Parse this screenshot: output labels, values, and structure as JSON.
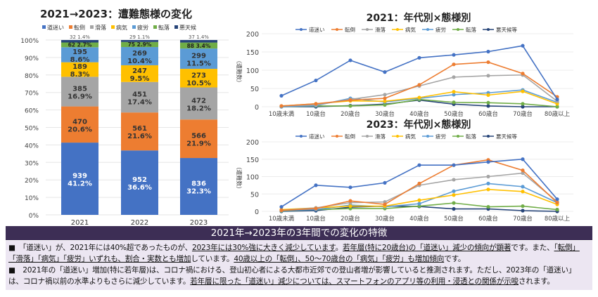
{
  "colors": {
    "道迷い": "#4472c4",
    "転倒": "#ed7d31",
    "滑落": "#a5a5a5",
    "病気": "#ffc000",
    "疲労": "#5b9bd5",
    "転落": "#70ad47",
    "悪天候": "#264478"
  },
  "chart_data": [
    {
      "type": "bar",
      "stacked": "percent",
      "title": "2021→2023：遭難態様の変化",
      "legend": [
        "道迷い",
        "転倒",
        "滑落",
        "病気",
        "疲労",
        "転落",
        "悪天候"
      ],
      "legend_position": "top",
      "categories": [
        "2021",
        "2022",
        "2023"
      ],
      "yticks": [
        "0%",
        "10%",
        "20%",
        "30%",
        "40%",
        "50%",
        "60%",
        "70%",
        "80%",
        "90%",
        "100%"
      ],
      "ylim": [
        0,
        100
      ],
      "grid": true,
      "series": [
        {
          "name": "道迷い",
          "values": [
            939,
            952,
            836
          ],
          "percents": [
            "41.2%",
            "36.6%",
            "32.3%"
          ]
        },
        {
          "name": "転倒",
          "values": [
            470,
            561,
            566
          ],
          "percents": [
            "20.6%",
            "21.6%",
            "21.9%"
          ]
        },
        {
          "name": "滑落",
          "values": [
            385,
            451,
            472
          ],
          "percents": [
            "16.9%",
            "17.4%",
            "18.2%"
          ]
        },
        {
          "name": "病気",
          "values": [
            189,
            247,
            273
          ],
          "percents": [
            "8.3%",
            "9.5%",
            "10.5%"
          ]
        },
        {
          "name": "疲労",
          "values": [
            195,
            269,
            299
          ],
          "percents": [
            "8.6%",
            "10.4%",
            "11.5%"
          ]
        },
        {
          "name": "転落",
          "values": [
            62,
            75,
            88
          ],
          "percents": [
            "2.7%",
            "2.9%",
            "3.4%"
          ]
        },
        {
          "name": "悪天候",
          "values": [
            32,
            29,
            37
          ],
          "percents": [
            "1.4%",
            "1.1%",
            "1.4%"
          ]
        }
      ]
    },
    {
      "type": "line",
      "title": "2021：年代別×態様別",
      "ylabel": "（遭難数）",
      "legend_position": "top",
      "ylim": [
        0,
        200
      ],
      "yticks": [
        0,
        50,
        100,
        150,
        200
      ],
      "grid": true,
      "categories": [
        "10歳未満",
        "10歳台",
        "20歳台",
        "30歳台",
        "40歳台",
        "50歳台",
        "60歳台",
        "70歳台",
        "80歳以上"
      ],
      "series": [
        {
          "name": "道迷い",
          "values": [
            30,
            72,
            127,
            95,
            134,
            142,
            151,
            167,
            20
          ]
        },
        {
          "name": "転倒",
          "values": [
            2,
            8,
            18,
            23,
            60,
            116,
            122,
            91,
            27
          ]
        },
        {
          "name": "滑落",
          "values": [
            2,
            5,
            20,
            33,
            57,
            81,
            85,
            87,
            15
          ]
        },
        {
          "name": "病気",
          "values": [
            2,
            8,
            16,
            15,
            25,
            41,
            32,
            42,
            8
          ]
        },
        {
          "name": "疲労",
          "values": [
            0,
            3,
            23,
            13,
            23,
            33,
            38,
            46,
            12
          ]
        },
        {
          "name": "転落",
          "values": [
            0,
            2,
            2,
            5,
            20,
            12,
            11,
            8,
            0
          ]
        },
        {
          "name": "悪天候等",
          "values": [
            0,
            0,
            3,
            7,
            18,
            7,
            2,
            0,
            0
          ]
        }
      ]
    },
    {
      "type": "line",
      "title": "2023：年代別×態様別",
      "ylabel": "（遭難数）",
      "legend_position": "top",
      "ylim": [
        0,
        200
      ],
      "yticks": [
        0,
        50,
        100,
        150,
        200
      ],
      "grid": true,
      "categories": [
        "10歳未満",
        "10歳台",
        "20歳台",
        "30歳台",
        "40歳台",
        "50歳台",
        "60歳台",
        "70歳台",
        "80歳以上"
      ],
      "series": [
        {
          "name": "道迷い",
          "values": [
            13,
            75,
            69,
            82,
            133,
            133,
            142,
            150,
            35
          ]
        },
        {
          "name": "転倒",
          "values": [
            3,
            8,
            30,
            20,
            80,
            133,
            148,
            118,
            25
          ]
        },
        {
          "name": "滑落",
          "values": [
            3,
            10,
            25,
            27,
            75,
            91,
            100,
            110,
            28
          ]
        },
        {
          "name": "病気",
          "values": [
            5,
            10,
            15,
            15,
            32,
            47,
            63,
            57,
            20
          ]
        },
        {
          "name": "疲労",
          "values": [
            2,
            5,
            18,
            13,
            22,
            58,
            80,
            71,
            25
          ]
        },
        {
          "name": "転落",
          "values": [
            1,
            5,
            8,
            8,
            15,
            24,
            13,
            15,
            5
          ]
        },
        {
          "name": "悪天候等",
          "values": [
            0,
            2,
            12,
            15,
            14,
            7,
            7,
            2,
            0
          ]
        }
      ]
    }
  ],
  "banner": {
    "title": "2021年→2023年の3年間での変化の特徴"
  },
  "notes": [
    [
      {
        "t": "■　「道迷い」が、2021年には40%超であったものが、"
      },
      {
        "t": "2023年には30%強に大きく減少しています",
        "u": true
      },
      {
        "t": "。"
      },
      {
        "t": "若年層(特に20歳台)の「道迷い」減少の傾向が顕著",
        "u": true
      },
      {
        "t": "です。また、"
      },
      {
        "t": "「転倒」「滑落」「病気」「疲労」いずれも、割合・実数とも増加",
        "u": true
      },
      {
        "t": "しています。"
      },
      {
        "t": "40歳以上の「転倒」、50～70歳台の「病気」「疲労」も増加傾向",
        "u": true
      },
      {
        "t": "です。"
      }
    ],
    [
      {
        "t": "■　2021年の「道迷い」増加(特に若年層)は、コロナ禍における、登山初心者による大都市近郊での登山者増が影響していると推測されます。ただし、2023年の「道迷い」は、コロナ禍以前の水準よりもさらに減少しています。"
      },
      {
        "t": "若年層に限った「道迷い」減少については、スマートフォンのアプリ等の利用・浸透との関係が示唆",
        "u": true
      },
      {
        "t": "されます。"
      }
    ]
  ]
}
